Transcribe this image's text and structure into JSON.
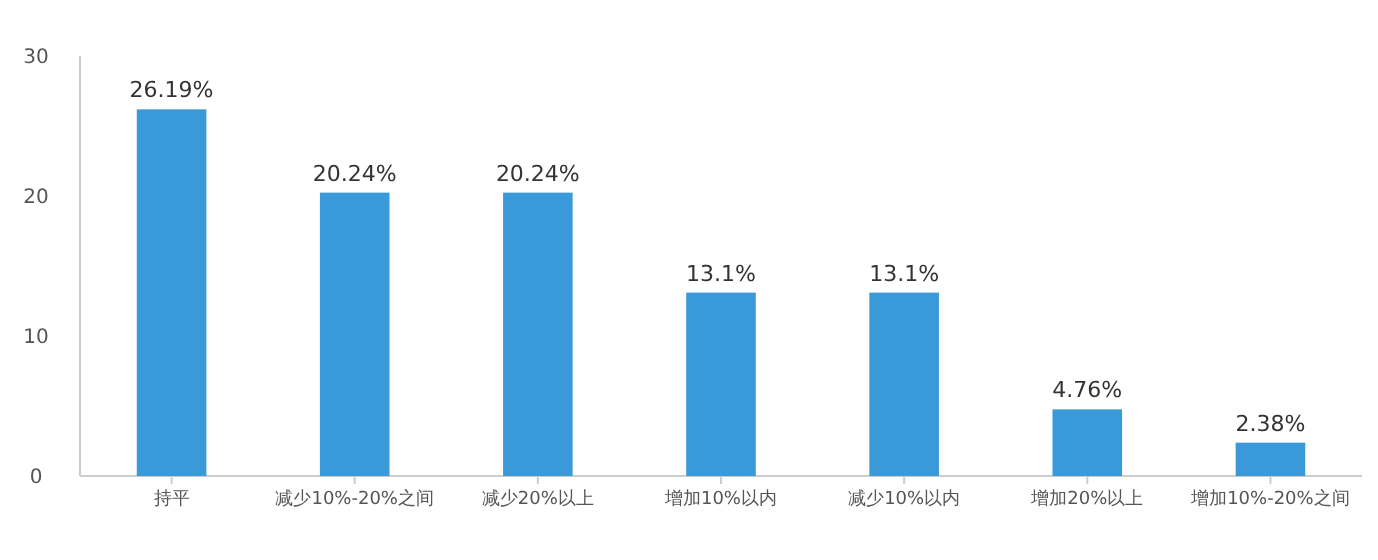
{
  "chart_data": {
    "type": "bar",
    "categories": [
      "持平",
      "减少10%-20%之间",
      "减少20%以上",
      "增加10%以内",
      "减少10%以内",
      "增加20%以上",
      "增加10%-20%之间"
    ],
    "values": [
      26.19,
      20.24,
      20.24,
      13.1,
      13.1,
      4.76,
      2.38
    ],
    "color": "#3a9ad9",
    "ylim": [
      0,
      30
    ],
    "yticks": [
      0,
      10,
      20,
      30
    ],
    "data_labels": true,
    "value_labels": [
      "26.19%",
      "20.24%",
      "20.24%",
      "13.1%",
      "13.1%",
      "4.76%",
      "2.38%"
    ]
  }
}
